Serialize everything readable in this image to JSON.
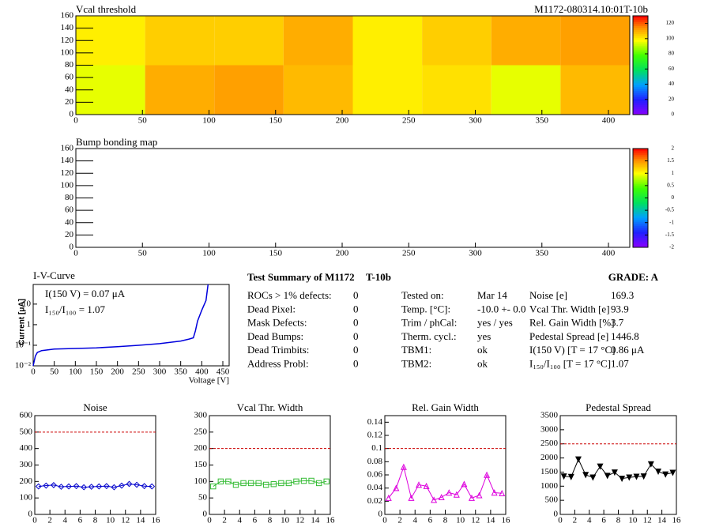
{
  "header": {
    "module_id": "M1172-080314.10:01T-10b"
  },
  "chart_data": [
    {
      "type": "heatmap",
      "title": "Vcal threshold",
      "xbins": [
        0,
        52,
        104,
        156,
        208,
        260,
        312,
        364,
        416
      ],
      "ybins": [
        0,
        80,
        160
      ],
      "z": [
        [
          95,
          110,
          112,
          108,
          100,
          102,
          95,
          108
        ],
        [
          100,
          105,
          105,
          110,
          100,
          105,
          110,
          112
        ]
      ],
      "xlim": [
        0,
        416
      ],
      "ylim": [
        0,
        160
      ],
      "xticks": [
        0,
        50,
        100,
        150,
        200,
        250,
        300,
        350,
        400
      ],
      "yticks": [
        0,
        20,
        40,
        60,
        80,
        100,
        120,
        140,
        160
      ],
      "zlim": [
        0,
        130
      ],
      "zticks": [
        0,
        20,
        40,
        60,
        80,
        100,
        120
      ]
    },
    {
      "type": "heatmap",
      "title": "Bump bonding map",
      "xlim": [
        0,
        416
      ],
      "ylim": [
        0,
        160
      ],
      "xticks": [
        0,
        50,
        100,
        150,
        200,
        250,
        300,
        350,
        400
      ],
      "yticks": [
        0,
        20,
        40,
        60,
        80,
        100,
        120,
        140,
        160
      ],
      "zlim": [
        -2,
        2
      ],
      "zticks": [
        -2,
        -1.5,
        -1,
        -0.5,
        0,
        0.5,
        1,
        1.5,
        2
      ]
    },
    {
      "type": "line",
      "title": "I-V-Curve",
      "x_label": "Voltage [V]",
      "y_label": "Current [μA]",
      "ylog": true,
      "annotations": [
        "I(150 V) = 0.07 μA",
        "I₁₅₀/I₁₀₀ =  1.07"
      ],
      "x": [
        0,
        5,
        10,
        20,
        50,
        100,
        150,
        200,
        250,
        300,
        350,
        370,
        380,
        385,
        390,
        400,
        410,
        415
      ],
      "values": [
        0.01,
        0.03,
        0.045,
        0.055,
        0.065,
        0.07,
        0.075,
        0.085,
        0.1,
        0.12,
        0.16,
        0.2,
        0.23,
        0.5,
        1.5,
        5,
        15,
        90
      ],
      "color": "#0000dd",
      "xlim": [
        0,
        465
      ],
      "ylim": [
        0.01,
        90
      ],
      "xticks": [
        0,
        50,
        100,
        150,
        200,
        250,
        300,
        350,
        400,
        450
      ],
      "yticks": [
        {
          "value": 0.01,
          "label": "10⁻²"
        },
        {
          "value": 0.1,
          "label": "10⁻¹"
        },
        1,
        10
      ]
    },
    {
      "type": "line",
      "title": "Noise",
      "marker": "diamond",
      "color": "#0000cc",
      "x": [
        0.5,
        1.5,
        2.5,
        3.5,
        4.5,
        5.5,
        6.5,
        7.5,
        8.5,
        9.5,
        10.5,
        11.5,
        12.5,
        13.5,
        14.5,
        15.5
      ],
      "values": [
        170,
        175,
        178,
        168,
        170,
        172,
        165,
        168,
        170,
        172,
        165,
        175,
        185,
        180,
        172,
        170
      ],
      "ref_line": 500,
      "xlim": [
        0,
        16
      ],
      "ylim": [
        0,
        600
      ],
      "xticks": [
        0,
        2,
        4,
        6,
        8,
        10,
        12,
        14,
        16
      ],
      "yticks": [
        0,
        100,
        200,
        300,
        400,
        500,
        600
      ]
    },
    {
      "type": "line",
      "title": "Vcal Thr. Width",
      "marker": "square",
      "color": "#33bb33",
      "x": [
        0.5,
        1.5,
        2.5,
        3.5,
        4.5,
        5.5,
        6.5,
        7.5,
        8.5,
        9.5,
        10.5,
        11.5,
        12.5,
        13.5,
        14.5,
        15.5
      ],
      "values": [
        85,
        100,
        100,
        90,
        95,
        95,
        95,
        90,
        92,
        95,
        95,
        100,
        102,
        102,
        95,
        100
      ],
      "ref_line": 200,
      "xlim": [
        0,
        16
      ],
      "ylim": [
        0,
        300
      ],
      "xticks": [
        0,
        2,
        4,
        6,
        8,
        10,
        12,
        14,
        16
      ],
      "yticks": [
        0,
        50,
        100,
        150,
        200,
        250,
        300
      ]
    },
    {
      "type": "line",
      "title": "Rel. Gain Width",
      "marker": "triangle",
      "color": "#dd00dd",
      "x": [
        0.5,
        1.5,
        2.5,
        3.5,
        4.5,
        5.5,
        6.5,
        7.5,
        8.5,
        9.5,
        10.5,
        11.5,
        12.5,
        13.5,
        14.5,
        15.5
      ],
      "values": [
        0.025,
        0.04,
        0.072,
        0.025,
        0.045,
        0.043,
        0.022,
        0.026,
        0.033,
        0.03,
        0.046,
        0.025,
        0.029,
        0.06,
        0.033,
        0.032
      ],
      "ref_line": 0.1,
      "xlim": [
        0,
        16
      ],
      "ylim": [
        0,
        0.15
      ],
      "xticks": [
        0,
        2,
        4,
        6,
        8,
        10,
        12,
        14,
        16
      ],
      "yticks": [
        0,
        0.02,
        0.04,
        0.06,
        0.08,
        0.1,
        0.12,
        0.14
      ]
    },
    {
      "type": "line",
      "title": "Pedestal Spread",
      "marker": "triangle-down",
      "color": "#000000",
      "x": [
        0.5,
        1.5,
        2.5,
        3.5,
        4.5,
        5.5,
        6.5,
        7.5,
        8.5,
        9.5,
        10.5,
        11.5,
        12.5,
        13.5,
        14.5,
        15.5
      ],
      "values": [
        1350,
        1330,
        1950,
        1400,
        1310,
        1700,
        1370,
        1490,
        1270,
        1310,
        1340,
        1350,
        1780,
        1520,
        1420,
        1480
      ],
      "ref_line": 2500,
      "xlim": [
        0,
        16
      ],
      "ylim": [
        0,
        3500
      ],
      "xticks": [
        0,
        2,
        4,
        6,
        8,
        10,
        12,
        14,
        16
      ],
      "yticks": [
        0,
        500,
        1000,
        1500,
        2000,
        2500,
        3000,
        3500
      ]
    }
  ],
  "summary": {
    "title": "Test Summary of M1172",
    "module": "T-10b",
    "grade": "GRADE:  A",
    "defects": [
      [
        "ROCs > 1% defects:",
        "0"
      ],
      [
        "Dead Pixel:",
        "0"
      ],
      [
        "Mask Defects:",
        "0"
      ],
      [
        "Dead Bumps:",
        "0"
      ],
      [
        "Dead Trimbits:",
        "0"
      ],
      [
        "Address Probl:",
        "0"
      ]
    ],
    "conditions": [
      [
        "Tested on:",
        "Mar 14"
      ],
      [
        "Temp. [°C]:",
        "-10.0 +- 0.0"
      ],
      [
        "Trim / phCal:",
        "yes / yes"
      ],
      [
        "Therm. cycl.:",
        "yes"
      ],
      [
        "TBM1:",
        "ok"
      ],
      [
        "TBM2:",
        "ok"
      ]
    ],
    "results": [
      [
        "Noise [e]",
        "169.3"
      ],
      [
        "Vcal Thr. Width [e]",
        "93.9"
      ],
      [
        "Rel. Gain Width [%]",
        "3.7"
      ],
      [
        "Pedestal Spread [e]",
        "1446.8"
      ],
      [
        "I(150 V) [T = 17 °C]",
        "0.86 μA"
      ],
      [
        "I₁₅₀/I₁₀₀  [T = 17 °C]",
        "1.07"
      ]
    ]
  }
}
